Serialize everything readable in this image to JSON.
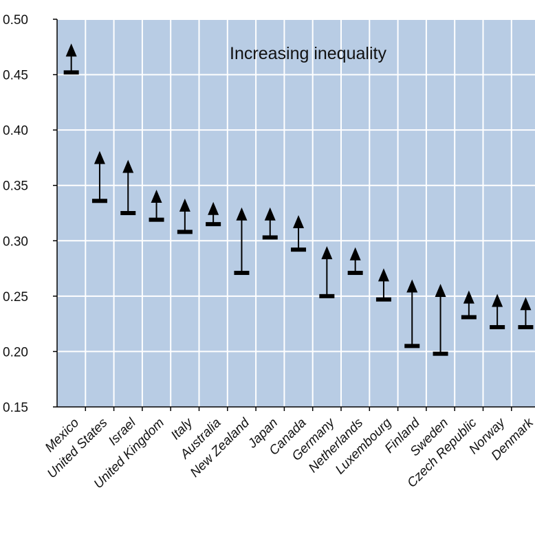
{
  "chart_data": {
    "type": "range",
    "title": "",
    "xlabel": "",
    "ylabel": "",
    "ylim": [
      0.15,
      0.5
    ],
    "yticks": [
      "0.15",
      "0.20",
      "0.25",
      "0.30",
      "0.35",
      "0.40",
      "0.45",
      "0.50"
    ],
    "grid": true,
    "annotation": "Increasing inequality",
    "colors": {
      "plot_bg": "#b8cce4",
      "grid": "#ffffff",
      "marker": "#000000",
      "axis": "#000000"
    },
    "categories": [
      "Mexico",
      "United States",
      "Israel",
      "United Kingdom",
      "Italy",
      "Australia",
      "New Zealand",
      "Japan",
      "Canada",
      "Germany",
      "Netherlands",
      "Luxembourg",
      "Finland",
      "Sweden",
      "Czech Republic",
      "Norway",
      "Denmark"
    ],
    "series": [
      {
        "values_start": [
          0.452,
          0.336,
          0.325,
          0.319,
          0.308,
          0.315,
          0.271,
          0.303,
          0.292,
          0.25,
          0.271,
          0.247,
          0.205,
          0.198,
          0.231,
          0.222,
          0.222
        ]
      },
      {
        "values_end": [
          0.475,
          0.378,
          0.37,
          0.343,
          0.335,
          0.332,
          0.327,
          0.327,
          0.32,
          0.292,
          0.291,
          0.272,
          0.262,
          0.258,
          0.252,
          0.249,
          0.246
        ]
      }
    ]
  }
}
